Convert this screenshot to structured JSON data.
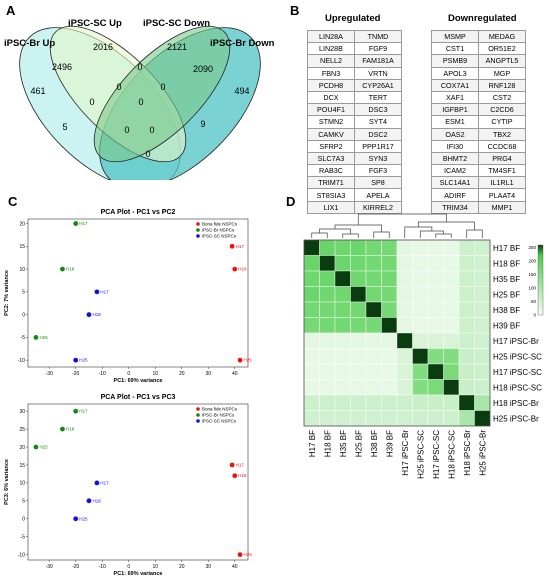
{
  "panels": {
    "a": "A",
    "b": "B",
    "c": "C",
    "d": "D"
  },
  "venn": {
    "labels": [
      "iPSC-Br Up",
      "iPSC-SC Up",
      "iPSC-SC Down",
      "iPSC-Br Down"
    ],
    "regions": [
      "461",
      "2016",
      "2121",
      "494",
      "2496",
      "0",
      "0",
      "2090",
      "0",
      "0",
      "0",
      "5",
      "0",
      "0",
      "9",
      "0"
    ]
  },
  "tables": {
    "up_title": "Upregulated",
    "down_title": "Downregulated",
    "up_rows": [
      [
        "LIN28A",
        "TNMD"
      ],
      [
        "LIN28B",
        "FGF9"
      ],
      [
        "NELL2",
        "FAM181A"
      ],
      [
        "FBN3",
        "VRTN"
      ],
      [
        "PCDH8",
        "CYP26A1"
      ],
      [
        "DCX",
        "TERT"
      ],
      [
        "POU4F1",
        "DSC3"
      ],
      [
        "STMN2",
        "SYT4"
      ],
      [
        "CAMKV",
        "DSC2"
      ],
      [
        "SFRP2",
        "PPP1R17"
      ],
      [
        "SLC7A3",
        "SYN3"
      ],
      [
        "RAB3C",
        "FGF3"
      ],
      [
        "TRIM71",
        "SP8"
      ],
      [
        "ST8SIA3",
        "APELA"
      ],
      [
        "LIX1",
        "KIRREL2"
      ]
    ],
    "down_rows": [
      [
        "MSMP",
        "MEDAG"
      ],
      [
        "CST1",
        "OR51E2"
      ],
      [
        "PSMB9",
        "ANGPTL5"
      ],
      [
        "APOL3",
        "MGP"
      ],
      [
        "COX7A1",
        "RNF128"
      ],
      [
        "XAF1",
        "CST2"
      ],
      [
        "IGFBP1",
        "C2CD6"
      ],
      [
        "ESM1",
        "CYTIP"
      ],
      [
        "OAS2",
        "TBX2"
      ],
      [
        "IFI30",
        "CCDC68"
      ],
      [
        "BHMT2",
        "PRG4"
      ],
      [
        "ICAM2",
        "TM4SF1"
      ],
      [
        "SLC14A1",
        "IL1RL1"
      ],
      [
        "ADIRF",
        "PLAAT4"
      ],
      [
        "TRIM34",
        "MMP1"
      ]
    ]
  },
  "colors": {
    "bf": "#ee1111",
    "br": "#118811",
    "sc": "#1111dd"
  },
  "chart_data": [
    {
      "type": "scatter",
      "title": "PCA Plot - PC1 vs PC2",
      "xlabel": "PC1: 69% variance",
      "ylabel": "PC2: 7% variance",
      "xlim": [
        -38,
        45
      ],
      "ylim": [
        -11.5,
        21
      ],
      "xticks": [
        -30,
        -20,
        -10,
        0,
        10,
        20,
        30,
        40
      ],
      "yticks": [
        -10,
        -5,
        0,
        5,
        10,
        15,
        20
      ],
      "legend": [
        "Bona fide NSPCs",
        "iPSC-Br NSPCs",
        "iPSC-SC NSPCs"
      ],
      "series": [
        {
          "name": "Bona fide NSPCs",
          "points": [
            {
              "label": "H17",
              "x": 39,
              "y": 15
            },
            {
              "label": "H18",
              "x": 40,
              "y": 10
            },
            {
              "label": "H25",
              "x": 42,
              "y": -10
            }
          ]
        },
        {
          "name": "iPSC-Br NSPCs",
          "points": [
            {
              "label": "H17",
              "x": -20,
              "y": 20
            },
            {
              "label": "H18",
              "x": -25,
              "y": 10
            },
            {
              "label": "H25",
              "x": -35,
              "y": -5
            }
          ]
        },
        {
          "name": "iPSC-SC NSPCs",
          "points": [
            {
              "label": "H17",
              "x": -12,
              "y": 5
            },
            {
              "label": "H18",
              "x": -15,
              "y": 0
            },
            {
              "label": "H25",
              "x": -20,
              "y": -10
            }
          ]
        }
      ]
    },
    {
      "type": "scatter",
      "title": "PCA Plot - PC1 vs PC3",
      "xlabel": "PC1: 69% variance",
      "ylabel": "PC3: 6% variance",
      "xlim": [
        -38,
        45
      ],
      "ylim": [
        -11.5,
        32
      ],
      "xticks": [
        -30,
        -20,
        -10,
        0,
        10,
        20,
        30,
        40
      ],
      "yticks": [
        -10,
        -5,
        0,
        5,
        10,
        15,
        20,
        25,
        30
      ],
      "legend": [
        "Bona fide NSPCs",
        "iPSC-Br NSPCs",
        "iPSC-SC NSPCs"
      ],
      "series": [
        {
          "name": "Bona fide NSPCs",
          "points": [
            {
              "label": "H17",
              "x": 39,
              "y": 15
            },
            {
              "label": "H18",
              "x": 40,
              "y": 12
            },
            {
              "label": "H25",
              "x": 42,
              "y": -10
            }
          ]
        },
        {
          "name": "iPSC-Br NSPCs",
          "points": [
            {
              "label": "H17",
              "x": -20,
              "y": 30
            },
            {
              "label": "H18",
              "x": -25,
              "y": 25
            },
            {
              "label": "H25",
              "x": -35,
              "y": 20
            }
          ]
        },
        {
          "name": "iPSC-SC NSPCs",
          "points": [
            {
              "label": "H17",
              "x": -12,
              "y": 10
            },
            {
              "label": "H18",
              "x": -15,
              "y": 5
            },
            {
              "label": "H25",
              "x": -20,
              "y": 0
            }
          ]
        }
      ]
    },
    {
      "type": "heatmap",
      "labels": [
        "H17 BF",
        "H18 BF",
        "H35 BF",
        "H25 BF",
        "H38 BF",
        "H39 BF",
        "H17 iPSC-Br",
        "H25 iPSC-SC",
        "H17 iPSC-SC",
        "H18 iPSC-SC",
        "H18 iPSC-Br",
        "H25 iPSC-Br"
      ],
      "colorbar_ticks": [
        0,
        50,
        100,
        150,
        200,
        250
      ],
      "range": [
        0,
        260
      ],
      "values": [
        [
          260,
          185,
          175,
          180,
          170,
          165,
          25,
          20,
          20,
          20,
          55,
          50
        ],
        [
          185,
          260,
          180,
          175,
          170,
          170,
          25,
          20,
          20,
          20,
          55,
          50
        ],
        [
          175,
          180,
          260,
          175,
          170,
          170,
          25,
          20,
          20,
          20,
          55,
          50
        ],
        [
          180,
          175,
          175,
          260,
          170,
          165,
          25,
          20,
          20,
          20,
          55,
          50
        ],
        [
          170,
          170,
          170,
          170,
          260,
          165,
          25,
          20,
          20,
          20,
          55,
          50
        ],
        [
          165,
          170,
          170,
          165,
          165,
          260,
          25,
          20,
          20,
          20,
          55,
          50
        ],
        [
          25,
          25,
          25,
          25,
          25,
          25,
          260,
          40,
          40,
          40,
          55,
          50
        ],
        [
          20,
          20,
          20,
          20,
          20,
          20,
          40,
          260,
          150,
          150,
          60,
          55
        ],
        [
          20,
          20,
          20,
          20,
          20,
          20,
          40,
          150,
          260,
          160,
          60,
          55
        ],
        [
          20,
          20,
          20,
          20,
          20,
          20,
          40,
          150,
          160,
          260,
          60,
          55
        ],
        [
          55,
          55,
          55,
          55,
          55,
          55,
          55,
          60,
          60,
          60,
          260,
          100
        ],
        [
          50,
          50,
          50,
          50,
          50,
          50,
          50,
          55,
          55,
          55,
          100,
          260
        ]
      ]
    }
  ]
}
